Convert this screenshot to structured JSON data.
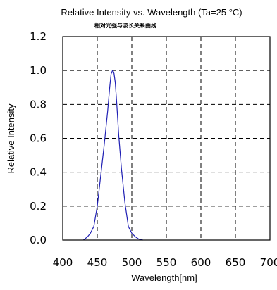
{
  "chart_data": {
    "type": "line",
    "title": "Relative Intensity vs. Wavelength (Ta=25 °C)",
    "subtitle": "相对光强与波长关系曲线",
    "xlabel": "Wavelength[nm]",
    "ylabel": "Relative Intensity",
    "xlim": [
      400,
      700
    ],
    "ylim": [
      0.0,
      1.2
    ],
    "x_ticks": [
      400,
      450,
      500,
      550,
      600,
      650,
      700
    ],
    "x_tick_labels": [
      "400",
      "450",
      "500",
      "550",
      "600",
      "650",
      "700"
    ],
    "y_ticks": [
      0.0,
      0.2,
      0.4,
      0.6,
      0.8,
      1.0,
      1.2
    ],
    "y_tick_labels": [
      "0.0",
      "0.2",
      "0.4",
      "0.6",
      "0.8",
      "1.0",
      "1.2"
    ],
    "grid": true,
    "grid_style": "dashed",
    "series": [
      {
        "color": "#1f1fb4",
        "x": [
          430,
          436,
          440,
          445,
          450,
          455,
          460,
          465,
          468,
          470,
          472,
          474,
          476,
          478,
          481,
          485,
          490,
          495,
          500,
          505,
          510,
          516
        ],
        "y": [
          0.0,
          0.02,
          0.04,
          0.08,
          0.2,
          0.38,
          0.56,
          0.76,
          0.9,
          0.98,
          1.0,
          0.99,
          0.93,
          0.82,
          0.62,
          0.42,
          0.22,
          0.08,
          0.04,
          0.02,
          0.006,
          0.0
        ]
      }
    ]
  }
}
